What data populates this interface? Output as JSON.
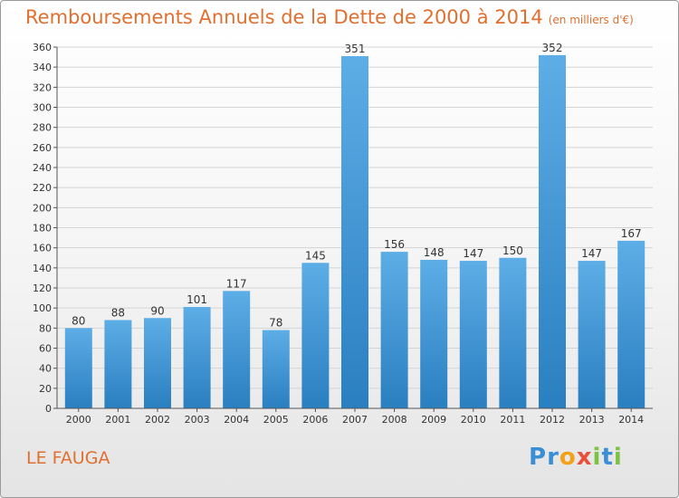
{
  "title": "Remboursements Annuels de la Dette de 2000 à 2014",
  "unit": "(en milliers d'€)",
  "commune": "LE FAUGA",
  "logo": "Proxiti",
  "colors": {
    "bar_light": "#5dade6",
    "bar_dark": "#2a7fc0",
    "title": "#e07030"
  },
  "chart_data": {
    "type": "bar",
    "title": "Remboursements Annuels de la Dette de 2000 à 2014",
    "subtitle": "(en milliers d'€)",
    "xlabel": "",
    "ylabel": "",
    "ylim": [
      0,
      360
    ],
    "ytick_step": 20,
    "grid": true,
    "categories": [
      "2000",
      "2001",
      "2002",
      "2003",
      "2004",
      "2005",
      "2006",
      "2007",
      "2008",
      "2009",
      "2010",
      "2011",
      "2012",
      "2013",
      "2014"
    ],
    "values": [
      80,
      88,
      90,
      101,
      117,
      78,
      145,
      351,
      156,
      148,
      147,
      150,
      352,
      147,
      167
    ]
  }
}
